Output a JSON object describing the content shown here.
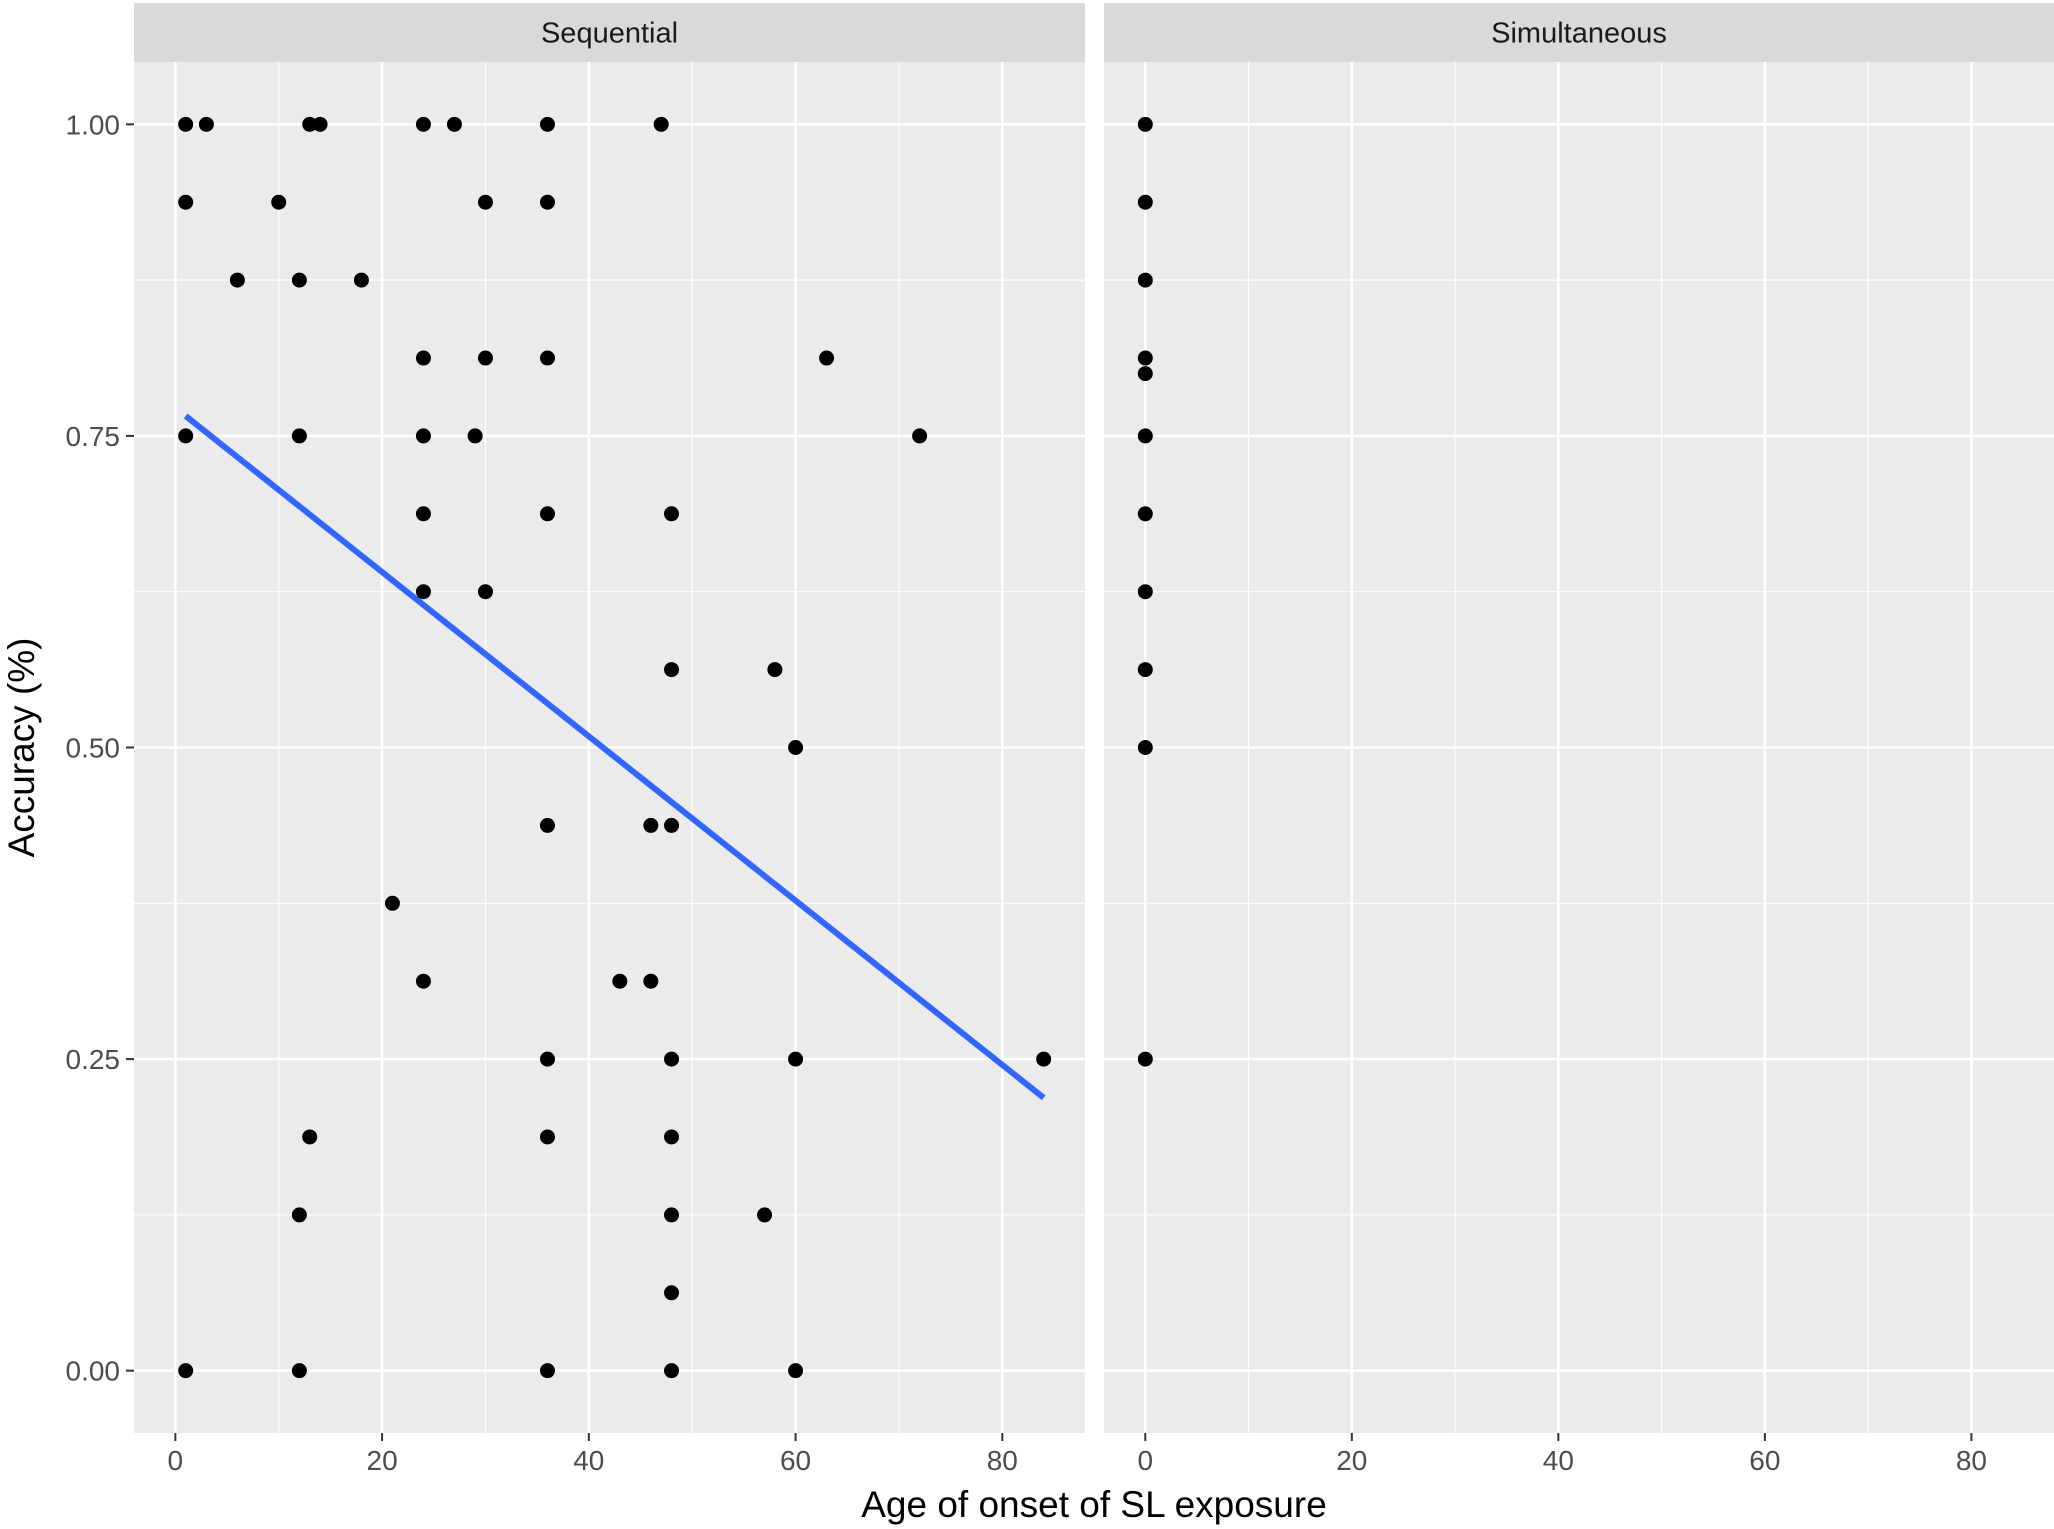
{
  "chart_data": {
    "type": "scatter",
    "xlabel": "Age of onset of SL exposure",
    "ylabel": "Accuracy (%)",
    "xlim": [
      -4,
      88
    ],
    "ylim": [
      -0.05,
      1.05
    ],
    "x_ticks": [
      0,
      20,
      40,
      60,
      80
    ],
    "y_ticks": [
      0,
      0.25,
      0.5,
      0.75,
      1.0
    ],
    "y_tick_labels": [
      "0.00",
      "0.25",
      "0.50",
      "0.75",
      "1.00"
    ],
    "x_minor": [
      10,
      30,
      50,
      70
    ],
    "y_minor": [
      0.125,
      0.375,
      0.625,
      0.875
    ],
    "grid": true,
    "legend": "none",
    "colors": {
      "panel_bg": "#ebebeb",
      "strip_bg": "#d9d9d9",
      "grid": "#ffffff",
      "point": "#000000",
      "fit_line": "#3366ff",
      "tick": "#333333"
    },
    "panels": [
      {
        "title": "Sequential",
        "points": [
          [
            1,
            1.0
          ],
          [
            3,
            1.0
          ],
          [
            13,
            1.0
          ],
          [
            14,
            1.0
          ],
          [
            24,
            1.0
          ],
          [
            27,
            1.0
          ],
          [
            36,
            1.0
          ],
          [
            47,
            1.0
          ],
          [
            1,
            0.9375
          ],
          [
            10,
            0.9375
          ],
          [
            30,
            0.9375
          ],
          [
            36,
            0.9375
          ],
          [
            6,
            0.875
          ],
          [
            12,
            0.875
          ],
          [
            18,
            0.875
          ],
          [
            24,
            0.8125
          ],
          [
            30,
            0.8125
          ],
          [
            36,
            0.8125
          ],
          [
            63,
            0.8125
          ],
          [
            1,
            0.75
          ],
          [
            12,
            0.75
          ],
          [
            24,
            0.75
          ],
          [
            29,
            0.75
          ],
          [
            72,
            0.75
          ],
          [
            24,
            0.6875
          ],
          [
            36,
            0.6875
          ],
          [
            48,
            0.6875
          ],
          [
            24,
            0.625
          ],
          [
            30,
            0.625
          ],
          [
            48,
            0.5625
          ],
          [
            58,
            0.5625
          ],
          [
            60,
            0.5
          ],
          [
            36,
            0.4375
          ],
          [
            46,
            0.4375
          ],
          [
            48,
            0.4375
          ],
          [
            21,
            0.375
          ],
          [
            24,
            0.3125
          ],
          [
            43,
            0.3125
          ],
          [
            46,
            0.3125
          ],
          [
            36,
            0.25
          ],
          [
            48,
            0.25
          ],
          [
            60,
            0.25
          ],
          [
            84,
            0.25
          ],
          [
            13,
            0.1875
          ],
          [
            36,
            0.1875
          ],
          [
            48,
            0.1875
          ],
          [
            12,
            0.125
          ],
          [
            48,
            0.125
          ],
          [
            57,
            0.125
          ],
          [
            48,
            0.0625
          ],
          [
            1,
            0.0
          ],
          [
            12,
            0.0
          ],
          [
            36,
            0.0
          ],
          [
            48,
            0.0
          ],
          [
            60,
            0.0
          ]
        ],
        "fit": {
          "x": [
            1,
            84
          ],
          "y": [
            0.766,
            0.219
          ]
        }
      },
      {
        "title": "Simultaneous",
        "points": [
          [
            0,
            1.0
          ],
          [
            0,
            0.9375
          ],
          [
            0,
            0.875
          ],
          [
            0,
            0.8125
          ],
          [
            0,
            0.8
          ],
          [
            0,
            0.75
          ],
          [
            0,
            0.6875
          ],
          [
            0,
            0.625
          ],
          [
            0,
            0.5625
          ],
          [
            0,
            0.5
          ],
          [
            0,
            0.25
          ]
        ]
      }
    ]
  }
}
